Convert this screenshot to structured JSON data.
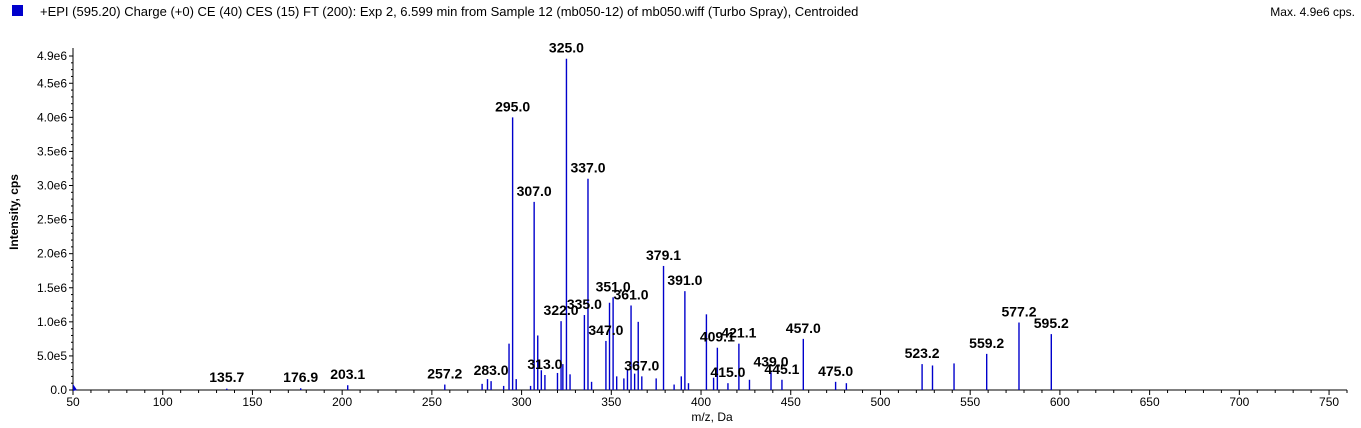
{
  "header": {
    "title": "+EPI (595.20) Charge (+0) CE (40) CES (15) FT (200): Exp 2, 6.599 min from Sample 12 (mb050-12) of mb050.wiff (Turbo Spray), Centroided",
    "max_label": "Max. 4.9e6 cps."
  },
  "colors": {
    "series": "#0000cc",
    "axis": "#000000"
  },
  "chart_data": {
    "type": "bar",
    "xlabel": "m/z, Da",
    "ylabel": "Intensity, cps",
    "xlim": [
      50,
      760
    ],
    "ylim": [
      0,
      4900000.0
    ],
    "x_ticks": [
      50,
      100,
      150,
      200,
      250,
      300,
      350,
      400,
      450,
      500,
      550,
      600,
      650,
      700,
      750
    ],
    "y_ticks": [
      {
        "value": 0,
        "label": "0.0"
      },
      {
        "value": 500000,
        "label": "5.0e5"
      },
      {
        "value": 1000000,
        "label": "1.0e6"
      },
      {
        "value": 1500000,
        "label": "1.5e6"
      },
      {
        "value": 2000000,
        "label": "2.0e6"
      },
      {
        "value": 2500000,
        "label": "2.5e6"
      },
      {
        "value": 3000000,
        "label": "3.0e6"
      },
      {
        "value": 3500000,
        "label": "3.5e6"
      },
      {
        "value": 4000000,
        "label": "4.0e6"
      },
      {
        "value": 4500000,
        "label": "4.5e6"
      },
      {
        "value": 4900000,
        "label": "4.9e6"
      }
    ],
    "peaks": [
      {
        "mz": 135.7,
        "intensity": 20000
      },
      {
        "mz": 176.9,
        "intensity": 25000
      },
      {
        "mz": 203.1,
        "intensity": 70000
      },
      {
        "mz": 257.2,
        "intensity": 80000
      },
      {
        "mz": 278.0,
        "intensity": 90000
      },
      {
        "mz": 281.0,
        "intensity": 160000
      },
      {
        "mz": 283.0,
        "intensity": 130000
      },
      {
        "mz": 290.0,
        "intensity": 60000
      },
      {
        "mz": 293.0,
        "intensity": 680000
      },
      {
        "mz": 295.0,
        "intensity": 4000000
      },
      {
        "mz": 297.0,
        "intensity": 160000
      },
      {
        "mz": 305.0,
        "intensity": 60000
      },
      {
        "mz": 307.0,
        "intensity": 2760000
      },
      {
        "mz": 309.0,
        "intensity": 800000
      },
      {
        "mz": 311.0,
        "intensity": 290000
      },
      {
        "mz": 313.0,
        "intensity": 220000
      },
      {
        "mz": 320.0,
        "intensity": 250000
      },
      {
        "mz": 322.0,
        "intensity": 1010000
      },
      {
        "mz": 323.0,
        "intensity": 380000
      },
      {
        "mz": 325.0,
        "intensity": 4860000
      },
      {
        "mz": 327.0,
        "intensity": 230000
      },
      {
        "mz": 335.0,
        "intensity": 1100000
      },
      {
        "mz": 337.0,
        "intensity": 3100000
      },
      {
        "mz": 339.0,
        "intensity": 120000
      },
      {
        "mz": 347.0,
        "intensity": 720000
      },
      {
        "mz": 349.0,
        "intensity": 1280000
      },
      {
        "mz": 351.0,
        "intensity": 1360000
      },
      {
        "mz": 353.0,
        "intensity": 200000
      },
      {
        "mz": 357.0,
        "intensity": 170000
      },
      {
        "mz": 359.0,
        "intensity": 300000
      },
      {
        "mz": 361.0,
        "intensity": 1240000
      },
      {
        "mz": 363.0,
        "intensity": 240000
      },
      {
        "mz": 365.0,
        "intensity": 1000000
      },
      {
        "mz": 367.0,
        "intensity": 200000
      },
      {
        "mz": 375.0,
        "intensity": 170000
      },
      {
        "mz": 379.1,
        "intensity": 1820000
      },
      {
        "mz": 385.0,
        "intensity": 80000
      },
      {
        "mz": 389.0,
        "intensity": 200000
      },
      {
        "mz": 391.0,
        "intensity": 1450000
      },
      {
        "mz": 393.0,
        "intensity": 100000
      },
      {
        "mz": 403.0,
        "intensity": 1110000
      },
      {
        "mz": 407.0,
        "intensity": 180000
      },
      {
        "mz": 409.1,
        "intensity": 620000
      },
      {
        "mz": 415.0,
        "intensity": 100000
      },
      {
        "mz": 421.1,
        "intensity": 680000
      },
      {
        "mz": 427.0,
        "intensity": 150000
      },
      {
        "mz": 439.0,
        "intensity": 260000
      },
      {
        "mz": 445.1,
        "intensity": 150000
      },
      {
        "mz": 457.0,
        "intensity": 750000
      },
      {
        "mz": 475.0,
        "intensity": 120000
      },
      {
        "mz": 481.0,
        "intensity": 100000
      },
      {
        "mz": 523.2,
        "intensity": 380000
      },
      {
        "mz": 529.0,
        "intensity": 360000
      },
      {
        "mz": 541.0,
        "intensity": 390000
      },
      {
        "mz": 559.2,
        "intensity": 530000
      },
      {
        "mz": 577.2,
        "intensity": 990000
      },
      {
        "mz": 595.2,
        "intensity": 820000
      }
    ],
    "peak_labels": [
      {
        "text": "135.7",
        "mz": 135.7,
        "intensity": 20000
      },
      {
        "text": "176.9",
        "mz": 176.9,
        "intensity": 25000
      },
      {
        "text": "203.1",
        "mz": 203.1,
        "intensity": 70000
      },
      {
        "text": "257.2",
        "mz": 257.2,
        "intensity": 80000
      },
      {
        "text": "283.0",
        "mz": 283.0,
        "intensity": 130000
      },
      {
        "text": "295.0",
        "mz": 295.0,
        "intensity": 4000000
      },
      {
        "text": "307.0",
        "mz": 307.0,
        "intensity": 2760000
      },
      {
        "text": "313.0",
        "mz": 313.0,
        "intensity": 220000
      },
      {
        "text": "322.0",
        "mz": 322.0,
        "intensity": 1010000
      },
      {
        "text": "325.0",
        "mz": 325.0,
        "intensity": 4860000
      },
      {
        "text": "335.0",
        "mz": 335.0,
        "intensity": 1100000
      },
      {
        "text": "337.0",
        "mz": 337.0,
        "intensity": 3100000
      },
      {
        "text": "347.0",
        "mz": 347.0,
        "intensity": 720000
      },
      {
        "text": "351.0",
        "mz": 351.0,
        "intensity": 1360000
      },
      {
        "text": "361.0",
        "mz": 361.0,
        "intensity": 1240000
      },
      {
        "text": "367.0",
        "mz": 367.0,
        "intensity": 200000
      },
      {
        "text": "379.1",
        "mz": 379.1,
        "intensity": 1820000
      },
      {
        "text": "391.0",
        "mz": 391.0,
        "intensity": 1450000
      },
      {
        "text": "409.1",
        "mz": 409.1,
        "intensity": 620000
      },
      {
        "text": "415.0",
        "mz": 415.0,
        "intensity": 100000
      },
      {
        "text": "421.1",
        "mz": 421.1,
        "intensity": 680000
      },
      {
        "text": "439.0",
        "mz": 439.0,
        "intensity": 260000
      },
      {
        "text": "445.1",
        "mz": 445.1,
        "intensity": 150000
      },
      {
        "text": "457.0",
        "mz": 457.0,
        "intensity": 750000
      },
      {
        "text": "475.0",
        "mz": 475.0,
        "intensity": 120000
      },
      {
        "text": "523.2",
        "mz": 523.2,
        "intensity": 380000
      },
      {
        "text": "559.2",
        "mz": 559.2,
        "intensity": 530000
      },
      {
        "text": "577.2",
        "mz": 577.2,
        "intensity": 990000
      },
      {
        "text": "595.2",
        "mz": 595.2,
        "intensity": 820000
      }
    ]
  }
}
